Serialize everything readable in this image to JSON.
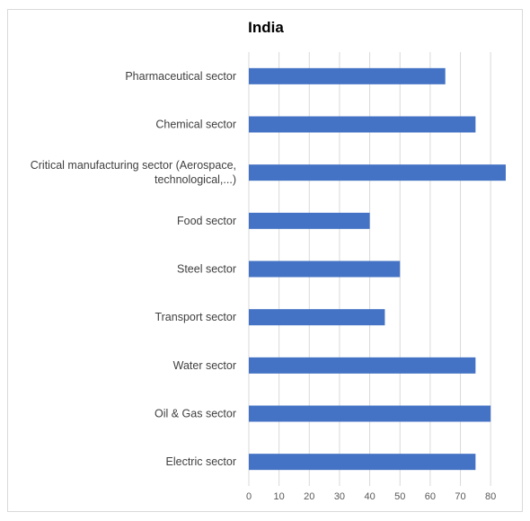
{
  "chart_data": {
    "type": "bar",
    "orientation": "horizontal",
    "title": "India",
    "xlabel": "",
    "ylabel": "",
    "categories": [
      "Pharmaceutical sector",
      "Chemical sector",
      [
        "Critical manufacturing sector (Aerospace,",
        "technological,...)"
      ],
      "Food sector",
      "Steel sector",
      "Transport sector",
      "Water sector",
      "Oil & Gas sector",
      "Electric sector"
    ],
    "values": [
      65,
      75,
      85,
      40,
      50,
      45,
      75,
      80,
      75
    ],
    "xlim": [
      0,
      85
    ],
    "xticks": [
      0,
      10,
      20,
      30,
      40,
      50,
      60,
      70,
      80
    ],
    "grid": true,
    "legend": "none",
    "bar_color": "#4472c4",
    "grid_color": "#d9d9d9"
  }
}
